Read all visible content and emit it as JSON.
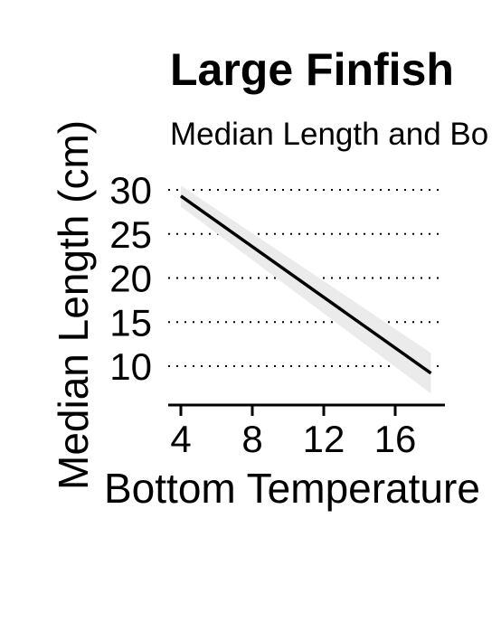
{
  "chart_data": {
    "type": "line",
    "title": "Large Finfish",
    "subtitle": "Median Length and Bo",
    "xlabel": "Bottom Temperature",
    "ylabel": "Median Length (cm)",
    "xlim": [
      3.5,
      18.5
    ],
    "ylim": [
      5,
      31
    ],
    "x_ticks": [
      4,
      8,
      12,
      16
    ],
    "y_ticks": [
      10,
      15,
      20,
      25,
      30
    ],
    "grid": "horizontal dotted",
    "series": [
      {
        "x": [
          4,
          18
        ],
        "y": [
          29.3,
          9.2
        ],
        "ci_lower": [
          28.1,
          6.9
        ],
        "ci_upper": [
          30.5,
          11.5
        ]
      }
    ],
    "colors": {
      "line": "#000000",
      "ribbon": "#ebebeb",
      "grid": "#000000"
    }
  }
}
